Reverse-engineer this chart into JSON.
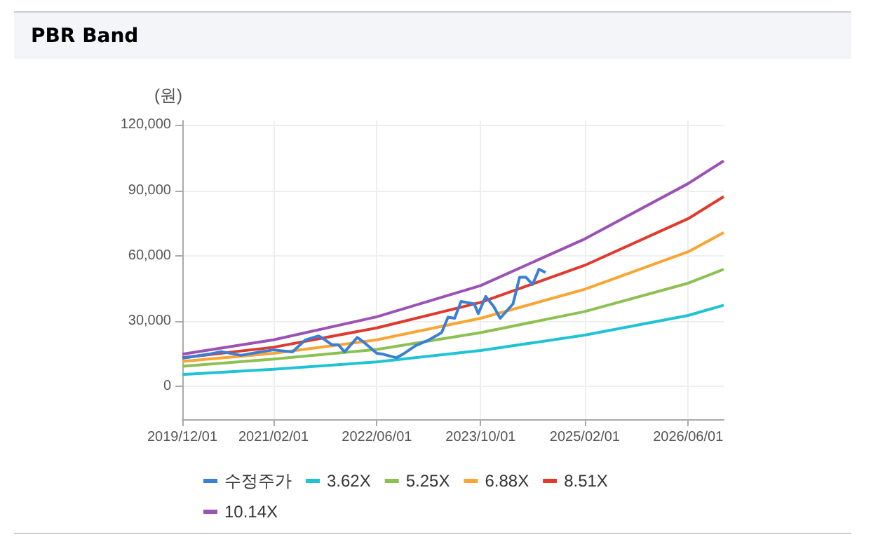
{
  "chart_data": {
    "type": "line",
    "title": "PBR Band",
    "ylabel": "(원)",
    "xlim": [
      "2019-12-01",
      "2026-11-15"
    ],
    "xticks": [
      {
        "value": "2019-12-01",
        "label": "2019/12/01"
      },
      {
        "value": "2021-02-01",
        "label": "2021/02/01"
      },
      {
        "value": "2022-06-01",
        "label": "2022/06/01"
      },
      {
        "value": "2023-10-01",
        "label": "2023/10/01"
      },
      {
        "value": "2025-02-01",
        "label": "2025/02/01"
      },
      {
        "value": "2026-06-01",
        "label": "2026/06/01"
      }
    ],
    "ylim": [
      -15000,
      122000
    ],
    "yticks": [
      0,
      {
        "value": 30000,
        "label": "30,000"
      },
      {
        "value": 60000,
        "label": "60,000"
      },
      {
        "value": 90000,
        "label": "90,000"
      },
      {
        "value": 120000,
        "label": "120,000"
      }
    ],
    "grid": true,
    "legend": "bottom",
    "marker": "none",
    "line_style": "solid",
    "x": [
      "2019-12-01",
      "2021-02-01",
      "2022-06-01",
      "2023-10-01",
      "2025-02-01",
      "2026-06-01",
      "2026-11-15"
    ],
    "series": [
      {
        "name": "수정주가",
        "color": "#3a7fd5",
        "x": [
          "2019-12-01",
          "2020-04-01",
          "2020-06-01",
          "2020-09-01",
          "2020-12-01",
          "2021-02-01",
          "2021-05-01",
          "2021-07-01",
          "2021-09-01",
          "2021-10-01",
          "2021-11-01",
          "2021-12-01",
          "2022-01-01",
          "2022-03-01",
          "2022-04-01",
          "2022-06-01",
          "2022-07-01",
          "2022-09-01",
          "2022-10-01",
          "2022-12-01",
          "2023-02-01",
          "2023-04-01",
          "2023-05-01",
          "2023-06-01",
          "2023-07-01",
          "2023-09-01",
          "2023-09-20",
          "2023-10-25",
          "2023-12-01",
          "2024-01-01",
          "2024-03-01",
          "2024-04-01",
          "2024-05-01",
          "2024-06-01",
          "2024-07-01",
          "2024-08-01"
        ],
        "values": [
          13000,
          14800,
          16000,
          14300,
          15900,
          16800,
          15900,
          21400,
          23200,
          21400,
          19200,
          19200,
          15900,
          22500,
          20300,
          15200,
          14800,
          13200,
          14800,
          18800,
          21400,
          24700,
          31800,
          31300,
          39000,
          37900,
          33500,
          41300,
          36800,
          31300,
          37900,
          50100,
          50100,
          46800,
          53800,
          52300
        ]
      },
      {
        "name": "3.62X",
        "color": "#1fc3d4",
        "values": [
          5500,
          7900,
          11300,
          16500,
          23600,
          32600,
          37300
        ]
      },
      {
        "name": "5.25X",
        "color": "#8cc152",
        "values": [
          9300,
          12600,
          17000,
          24700,
          34400,
          47400,
          53800
        ]
      },
      {
        "name": "6.88X",
        "color": "#f9a533",
        "values": [
          11500,
          15200,
          21400,
          31300,
          44600,
          61800,
          70600
        ]
      },
      {
        "name": "8.51X",
        "color": "#e03a2e",
        "values": [
          13200,
          18000,
          26900,
          38600,
          55600,
          77000,
          87100
        ]
      },
      {
        "name": "10.14X",
        "color": "#9b52b4",
        "values": [
          14800,
          21400,
          32000,
          46300,
          67700,
          93100,
          103500
        ]
      }
    ]
  }
}
